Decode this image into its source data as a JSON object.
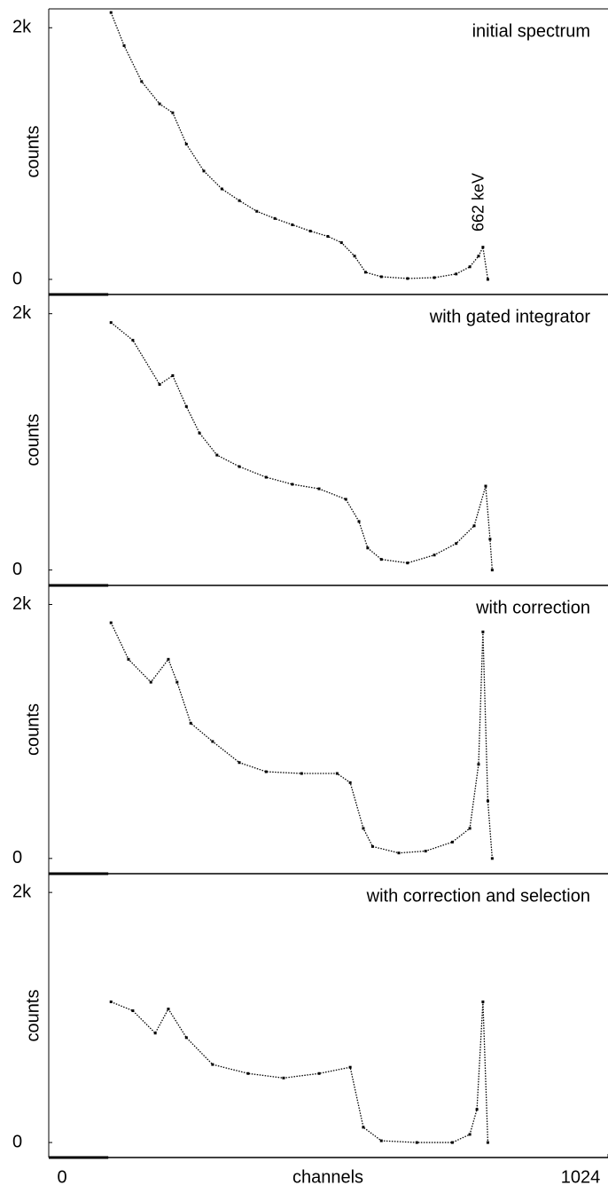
{
  "chart_data": [
    {
      "type": "line",
      "title": "initial spectrum",
      "y_label": "counts",
      "annotation": "662 keV",
      "xlim": [
        0,
        1024
      ],
      "ylim": [
        -120,
        2150
      ],
      "yticks": [
        0,
        {
          "value": 2000,
          "label": "2k"
        }
      ],
      "x": [
        114,
        138,
        170,
        203,
        227,
        252,
        284,
        317,
        349,
        381,
        414,
        446,
        479,
        511,
        536,
        560,
        580,
        609,
        657,
        706,
        746,
        771,
        787,
        795,
        804
      ],
      "values": [
        2121,
        1858,
        1573,
        1395,
        1324,
        1075,
        861,
        719,
        626,
        541,
        484,
        434,
        384,
        342,
        292,
        185,
        57,
        21,
        7,
        14,
        43,
        100,
        185,
        256,
        0
      ],
      "color": "#000000"
    },
    {
      "type": "line",
      "title": "with gated integrator",
      "y_label": "counts",
      "xlim": [
        0,
        1024
      ],
      "ylim": [
        -120,
        2150
      ],
      "yticks": [
        0,
        {
          "value": 2000,
          "label": "2k"
        }
      ],
      "x": [
        114,
        154,
        203,
        227,
        252,
        276,
        308,
        349,
        398,
        446,
        495,
        544,
        568,
        584,
        609,
        657,
        706,
        746,
        779,
        800,
        808,
        812
      ],
      "values": [
        1931,
        1793,
        1448,
        1517,
        1276,
        1069,
        897,
        807,
        724,
        669,
        634,
        552,
        379,
        172,
        83,
        55,
        117,
        207,
        345,
        655,
        241,
        0
      ],
      "color": "#000000"
    },
    {
      "type": "line",
      "title": "with correction",
      "y_label": "counts",
      "xlim": [
        0,
        1024
      ],
      "ylim": [
        -120,
        2150
      ],
      "yticks": [
        0,
        {
          "value": 2000,
          "label": "2k"
        }
      ],
      "x": [
        114,
        146,
        187,
        219,
        235,
        260,
        300,
        349,
        398,
        463,
        528,
        552,
        576,
        593,
        641,
        690,
        739,
        771,
        787,
        795,
        804,
        812
      ],
      "values": [
        1856,
        1568,
        1388,
        1568,
        1388,
        1065,
        921,
        755,
        683,
        669,
        669,
        597,
        237,
        94,
        43,
        58,
        129,
        237,
        741,
        1784,
        453,
        0
      ],
      "color": "#000000"
    },
    {
      "type": "line",
      "title": "with correction and selection",
      "y_label": "counts",
      "x_label": "channels",
      "xlim": [
        0,
        1024
      ],
      "ylim": [
        -120,
        2150
      ],
      "xticks": [
        0,
        1024
      ],
      "yticks": [
        0,
        {
          "value": 2000,
          "label": "2k"
        }
      ],
      "x": [
        114,
        154,
        195,
        219,
        252,
        300,
        365,
        430,
        495,
        552,
        576,
        609,
        674,
        739,
        771,
        784,
        795,
        804
      ],
      "values": [
        1125,
        1054,
        875,
        1068,
        839,
        624,
        552,
        516,
        552,
        602,
        122,
        14,
        0,
        0,
        65,
        265,
        1125,
        0
      ],
      "color": "#000000"
    }
  ]
}
